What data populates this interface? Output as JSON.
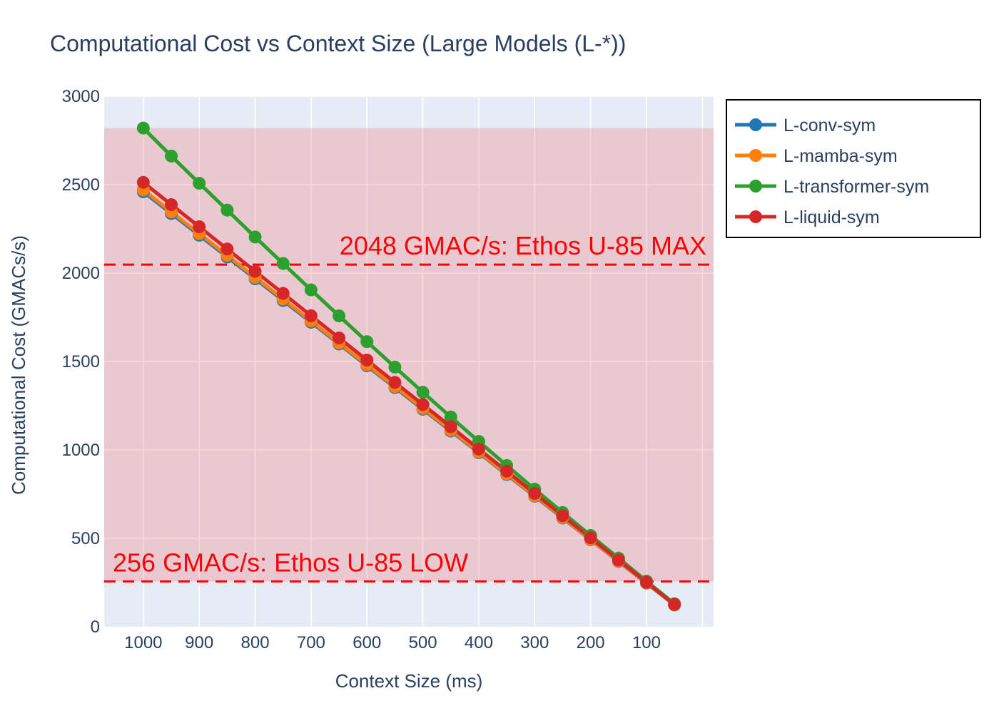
{
  "chart_data": {
    "type": "line",
    "title": "Computational Cost vs Context Size (Large Models (L-*))",
    "xlabel": "Context Size (ms)",
    "ylabel": "Computational Cost (GMACs/s)",
    "x_reversed": true,
    "xlim": [
      1070,
      -20
    ],
    "ylim": [
      0,
      3000
    ],
    "x_ticks": [
      1000,
      900,
      800,
      700,
      600,
      500,
      400,
      300,
      200,
      100
    ],
    "y_ticks": [
      0,
      500,
      1000,
      1500,
      2000,
      2500,
      3000
    ],
    "grid": true,
    "legend_position": "outside-top-right",
    "x": [
      1000,
      950,
      900,
      850,
      800,
      750,
      700,
      650,
      600,
      550,
      500,
      450,
      400,
      350,
      300,
      250,
      200,
      150,
      100,
      50
    ],
    "series": [
      {
        "name": "L-conv-sym",
        "color": "#1f77b4",
        "values": [
          2460,
          2337,
          2214,
          2091,
          1968,
          1845,
          1722,
          1599,
          1476,
          1353,
          1230,
          1107,
          984,
          861,
          738,
          615,
          492,
          369,
          246,
          123
        ]
      },
      {
        "name": "L-mamba-sym",
        "color": "#ff7f0e",
        "values": [
          2470,
          2346,
          2223,
          2100,
          1976,
          1853,
          1729,
          1605,
          1482,
          1358,
          1235,
          1112,
          988,
          865,
          741,
          618,
          494,
          371,
          247,
          124
        ]
      },
      {
        "name": "L-transformer-sym",
        "color": "#2ca02c",
        "values": [
          2820,
          2662,
          2508,
          2356,
          2204,
          2054,
          1905,
          1758,
          1612,
          1468,
          1326,
          1186,
          1048,
          912,
          778,
          646,
          516,
          388,
          258,
          130
        ]
      },
      {
        "name": "L-liquid-sym",
        "color": "#d62728",
        "values": [
          2513,
          2387,
          2262,
          2136,
          2010,
          1885,
          1759,
          1633,
          1508,
          1382,
          1257,
          1131,
          1005,
          880,
          754,
          628,
          503,
          377,
          251,
          126
        ]
      }
    ],
    "shaded_band": {
      "y0": 256,
      "y1": 2820,
      "color": "#ff0000",
      "opacity": 0.15
    },
    "reference_lines": [
      {
        "y": 2048,
        "label": "2048 GMAC/s: Ethos U-85 MAX",
        "color": "#ff0000",
        "label_anchor": "right"
      },
      {
        "y": 256,
        "label": "256 GMAC/s: Ethos U-85 LOW",
        "color": "#ff0000",
        "label_anchor": "left"
      }
    ],
    "plot_bgcolor": "#e5ecf6",
    "grid_color": "#ffffff"
  }
}
